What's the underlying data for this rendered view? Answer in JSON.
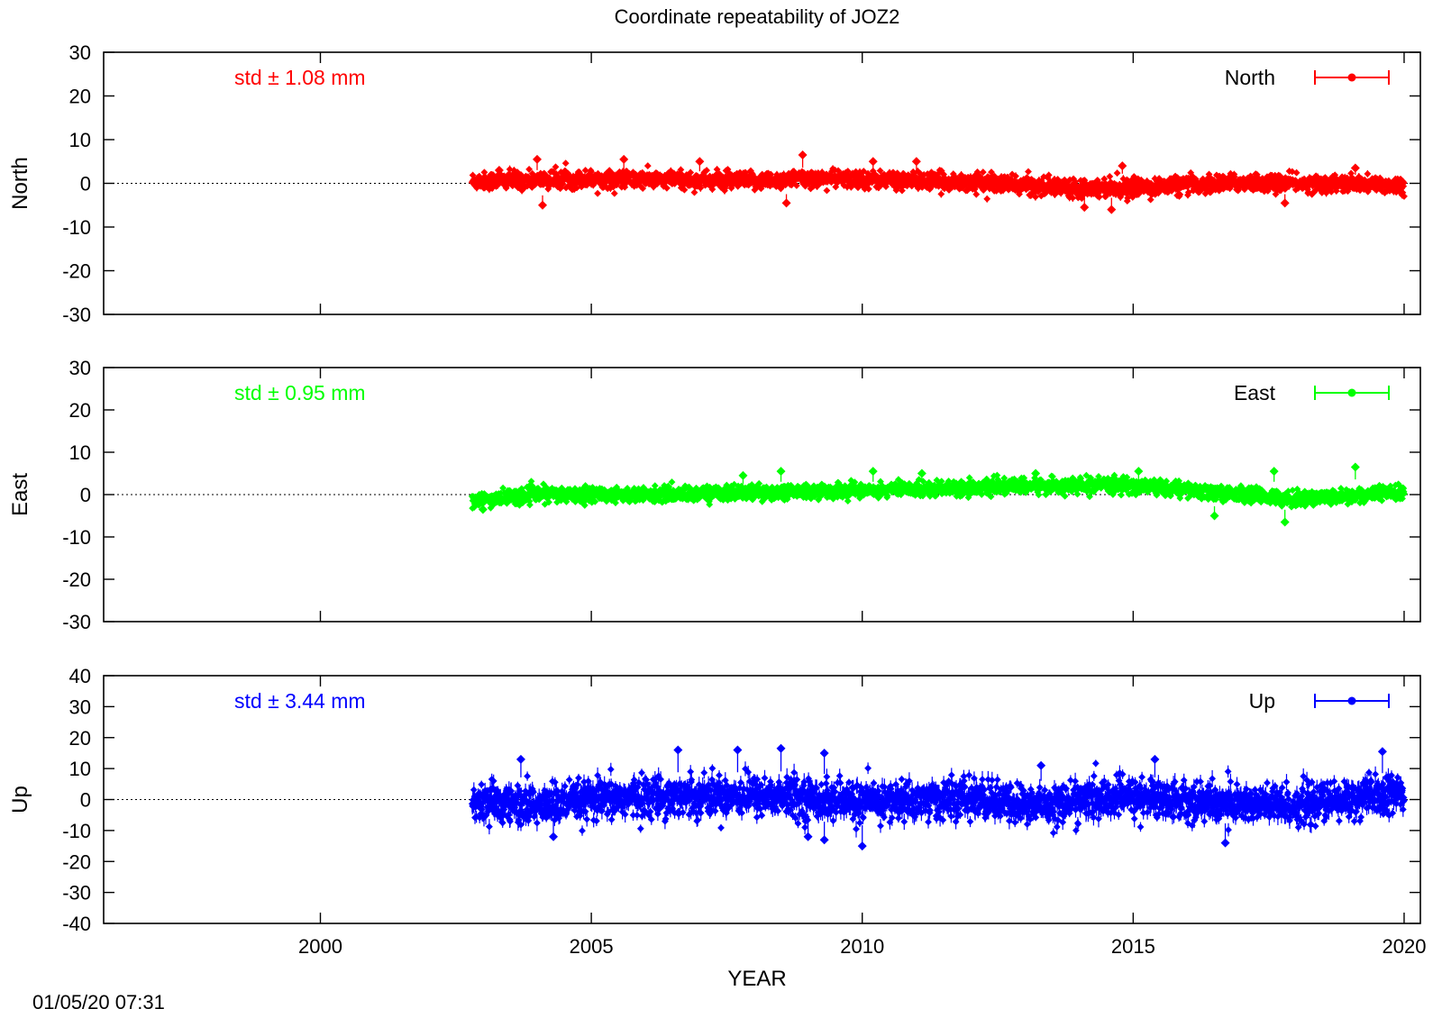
{
  "title": "Coordinate repeatability of JOZ2",
  "timestamp": "01/05/20 07:31",
  "chart_data": {
    "type": "scatter",
    "title": "Coordinate repeatability of JOZ2",
    "xlabel": "YEAR",
    "xlim": [
      1996,
      2020.3
    ],
    "xticks": [
      2000,
      2005,
      2010,
      2015,
      2020
    ],
    "xtick_labels": [
      "2000",
      "2005",
      "2010",
      "2015",
      "2020"
    ],
    "data_range": [
      2002.8,
      2020.0
    ],
    "panels": [
      {
        "name": "North",
        "ylabel": "North",
        "ylim": [
          -30,
          30
        ],
        "yticks": [
          -30,
          -20,
          -10,
          0,
          10,
          20,
          30
        ],
        "ytick_labels": [
          "-30",
          "-20",
          "-10",
          "0",
          "10",
          "20",
          "30"
        ],
        "std_text": "std ± 1.08 mm",
        "legend": "North",
        "color": "#ff0000",
        "std": 1.08,
        "trend": [
          [
            2002.8,
            0.5
          ],
          [
            2005,
            1.0
          ],
          [
            2008,
            0.5
          ],
          [
            2009,
            1.2
          ],
          [
            2012,
            0.3
          ],
          [
            2013.5,
            -0.8
          ],
          [
            2015,
            -1.0
          ],
          [
            2017,
            0.2
          ],
          [
            2020,
            -0.4
          ]
        ],
        "outliers": [
          [
            2003.3,
            3.0
          ],
          [
            2004.0,
            5.5
          ],
          [
            2004.1,
            -5.0
          ],
          [
            2005.6,
            5.5
          ],
          [
            2007.0,
            5.0
          ],
          [
            2008.9,
            6.5
          ],
          [
            2008.6,
            -4.5
          ],
          [
            2010.2,
            5.0
          ],
          [
            2011.0,
            5.0
          ],
          [
            2014.1,
            -5.5
          ],
          [
            2014.6,
            -6.0
          ],
          [
            2014.8,
            4.0
          ],
          [
            2017.8,
            -4.5
          ],
          [
            2019.1,
            3.5
          ]
        ]
      },
      {
        "name": "East",
        "ylabel": "East",
        "ylim": [
          -30,
          30
        ],
        "yticks": [
          -30,
          -20,
          -10,
          0,
          10,
          20,
          30
        ],
        "ytick_labels": [
          "-30",
          "-20",
          "-10",
          "0",
          "10",
          "20",
          "30"
        ],
        "std_text": "std ± 0.95 mm",
        "legend": "East",
        "color": "#00ff00",
        "std": 0.95,
        "trend": [
          [
            2002.8,
            -1.5
          ],
          [
            2004,
            0.0
          ],
          [
            2006,
            0.0
          ],
          [
            2008,
            0.5
          ],
          [
            2010,
            1.0
          ],
          [
            2013,
            2.0
          ],
          [
            2015,
            2.2
          ],
          [
            2016.5,
            0.5
          ],
          [
            2018,
            -1.0
          ],
          [
            2020,
            0.5
          ]
        ],
        "outliers": [
          [
            2007.8,
            4.5
          ],
          [
            2008.5,
            5.5
          ],
          [
            2010.2,
            5.5
          ],
          [
            2011.1,
            5.0
          ],
          [
            2013.2,
            5.0
          ],
          [
            2015.1,
            5.5
          ],
          [
            2016.5,
            -5.0
          ],
          [
            2017.6,
            5.5
          ],
          [
            2017.8,
            -6.5
          ],
          [
            2019.1,
            6.5
          ],
          [
            2003.0,
            -3.5
          ]
        ]
      },
      {
        "name": "Up",
        "ylabel": "Up",
        "ylim": [
          -40,
          40
        ],
        "yticks": [
          -40,
          -30,
          -20,
          -10,
          0,
          10,
          20,
          30,
          40
        ],
        "ytick_labels": [
          "-40",
          "-30",
          "-20",
          "-10",
          "0",
          "10",
          "20",
          "30",
          "40"
        ],
        "std_text": "std ± 3.44 mm",
        "legend": "Up",
        "color": "#0000ff",
        "std": 3.44,
        "trend": [
          [
            2002.8,
            -1.0
          ],
          [
            2004,
            -2.0
          ],
          [
            2006,
            1.0
          ],
          [
            2008,
            1.5
          ],
          [
            2010,
            -1.0
          ],
          [
            2012,
            0.5
          ],
          [
            2013,
            -2.0
          ],
          [
            2015,
            1.0
          ],
          [
            2016.5,
            -1.0
          ],
          [
            2018,
            -2.0
          ],
          [
            2020,
            2.0
          ]
        ],
        "outliers": [
          [
            2003.7,
            13.0
          ],
          [
            2004.3,
            -12.0
          ],
          [
            2006.6,
            16.0
          ],
          [
            2007.7,
            16.0
          ],
          [
            2008.5,
            16.5
          ],
          [
            2009.3,
            15.0
          ],
          [
            2009.3,
            -13.0
          ],
          [
            2010.0,
            -15.0
          ],
          [
            2013.3,
            11.0
          ],
          [
            2015.4,
            13.0
          ],
          [
            2016.7,
            -14.0
          ],
          [
            2019.6,
            15.5
          ],
          [
            2009.0,
            -12.0
          ]
        ]
      }
    ]
  }
}
